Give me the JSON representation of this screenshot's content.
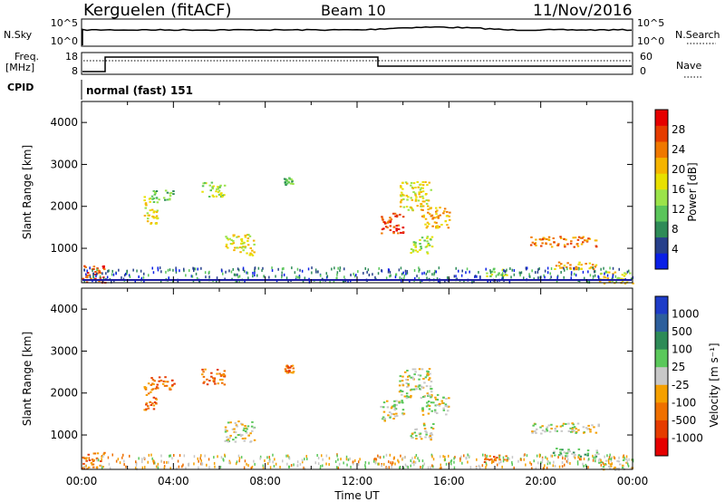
{
  "header": {
    "station": "Kerguelen (fitACF)",
    "beam": "Beam 10",
    "date": "11/Nov/2016"
  },
  "status_panel": {
    "nsky_label": "N.Sky",
    "nsky_ticks": [
      "10^5",
      "10^0"
    ],
    "nsearch_label": "N.Search",
    "nsearch_ticks": [
      "10^5",
      "10^0"
    ],
    "freq_label_1": "Freq.",
    "freq_label_2": "[MHz]",
    "freq_ticks": [
      "18",
      "8"
    ],
    "nave_label": "Nave",
    "nave_ticks": [
      "60",
      "0"
    ],
    "cpid_label": "CPID",
    "cpid_value": "normal (fast) 151"
  },
  "legend": {
    "power_label": "Power [dB]",
    "power_ticks": [
      "4",
      "8",
      "12",
      "16",
      "20",
      "24",
      "28"
    ],
    "power_colors": [
      "#0a1fe6",
      "#27408b",
      "#2e8b57",
      "#5ac55a",
      "#9be34a",
      "#e8e000",
      "#f5b400",
      "#f07800",
      "#e63c00",
      "#e60000"
    ],
    "velocity_label": "Velocity [m s⁻¹]",
    "velocity_ticks": [
      "1000",
      "500",
      "100",
      "25",
      "-25",
      "-100",
      "-500",
      "-1000"
    ],
    "velocity_colors": [
      "#1e3cc8",
      "#2d5f9c",
      "#2e8b57",
      "#5bc85b",
      "#c8c8c8",
      "#f5a000",
      "#ef7000",
      "#e63c00",
      "#e60000"
    ]
  },
  "chart_data": [
    {
      "type": "heatmap",
      "name": "power",
      "ylabel": "Slant Range [km]",
      "xlim": [
        0,
        24
      ],
      "ylim": [
        180,
        4500
      ],
      "yticks": [
        "1000",
        "2000",
        "3000",
        "4000"
      ],
      "blobs": [
        {
          "x": [
            0.0,
            1.0
          ],
          "y": [
            200,
            600
          ],
          "level": 8
        },
        {
          "x": [
            2.7,
            3.3
          ],
          "y": [
            1600,
            2250
          ],
          "level": 5
        },
        {
          "x": [
            3.0,
            4.0
          ],
          "y": [
            2100,
            2400
          ],
          "level": 3
        },
        {
          "x": [
            5.2,
            6.2
          ],
          "y": [
            2200,
            2600
          ],
          "level": 4
        },
        {
          "x": [
            6.2,
            7.5
          ],
          "y": [
            850,
            1350
          ],
          "level": 5
        },
        {
          "x": [
            8.8,
            9.2
          ],
          "y": [
            2500,
            2700
          ],
          "level": 3
        },
        {
          "x": [
            13.0,
            14.0
          ],
          "y": [
            1350,
            1850
          ],
          "level": 8
        },
        {
          "x": [
            13.8,
            15.2
          ],
          "y": [
            1900,
            2600
          ],
          "level": 5
        },
        {
          "x": [
            14.8,
            16.0
          ],
          "y": [
            1500,
            2000
          ],
          "level": 6
        },
        {
          "x": [
            14.3,
            15.3
          ],
          "y": [
            900,
            1300
          ],
          "level": 4
        },
        {
          "x": [
            17.5,
            18.5
          ],
          "y": [
            350,
            550
          ],
          "level": 4
        },
        {
          "x": [
            19.5,
            22.5
          ],
          "y": [
            1050,
            1300
          ],
          "level": 7
        },
        {
          "x": [
            20.5,
            22.5
          ],
          "y": [
            500,
            700
          ],
          "level": 6
        },
        {
          "x": [
            22.5,
            24.0
          ],
          "y": [
            180,
            450
          ],
          "level": 5
        }
      ]
    },
    {
      "type": "heatmap",
      "name": "velocity",
      "ylabel": "Slant Range [km]",
      "xlabel": "Time UT",
      "xlim": [
        0,
        24
      ],
      "ylim": [
        180,
        4500
      ],
      "yticks": [
        "1000",
        "2000",
        "3000",
        "4000"
      ],
      "xticks": [
        "00:00",
        "04:00",
        "08:00",
        "12:00",
        "16:00",
        "20:00",
        "00:00"
      ],
      "blobs": [
        {
          "x": [
            0.0,
            1.0
          ],
          "y": [
            200,
            600
          ],
          "level": 6
        },
        {
          "x": [
            2.7,
            3.3
          ],
          "y": [
            1600,
            2250
          ],
          "level": 6
        },
        {
          "x": [
            3.0,
            4.0
          ],
          "y": [
            2100,
            2400
          ],
          "level": 6
        },
        {
          "x": [
            5.2,
            6.2
          ],
          "y": [
            2200,
            2600
          ],
          "level": 6
        },
        {
          "x": [
            6.2,
            7.5
          ],
          "y": [
            850,
            1350
          ],
          "level": 4
        },
        {
          "x": [
            8.8,
            9.2
          ],
          "y": [
            2500,
            2700
          ],
          "level": 6
        },
        {
          "x": [
            13.0,
            14.0
          ],
          "y": [
            1350,
            1850
          ],
          "level": 4
        },
        {
          "x": [
            13.8,
            15.2
          ],
          "y": [
            1900,
            2600
          ],
          "level": 4
        },
        {
          "x": [
            14.8,
            16.0
          ],
          "y": [
            1500,
            2000
          ],
          "level": 4
        },
        {
          "x": [
            14.3,
            15.3
          ],
          "y": [
            900,
            1300
          ],
          "level": 4
        },
        {
          "x": [
            17.5,
            18.5
          ],
          "y": [
            350,
            550
          ],
          "level": 6
        },
        {
          "x": [
            19.5,
            22.5
          ],
          "y": [
            1050,
            1300
          ],
          "level": 4
        },
        {
          "x": [
            20.5,
            22.5
          ],
          "y": [
            500,
            700
          ],
          "level": 3
        },
        {
          "x": [
            22.5,
            24.0
          ],
          "y": [
            180,
            450
          ],
          "level": 4
        }
      ]
    }
  ]
}
